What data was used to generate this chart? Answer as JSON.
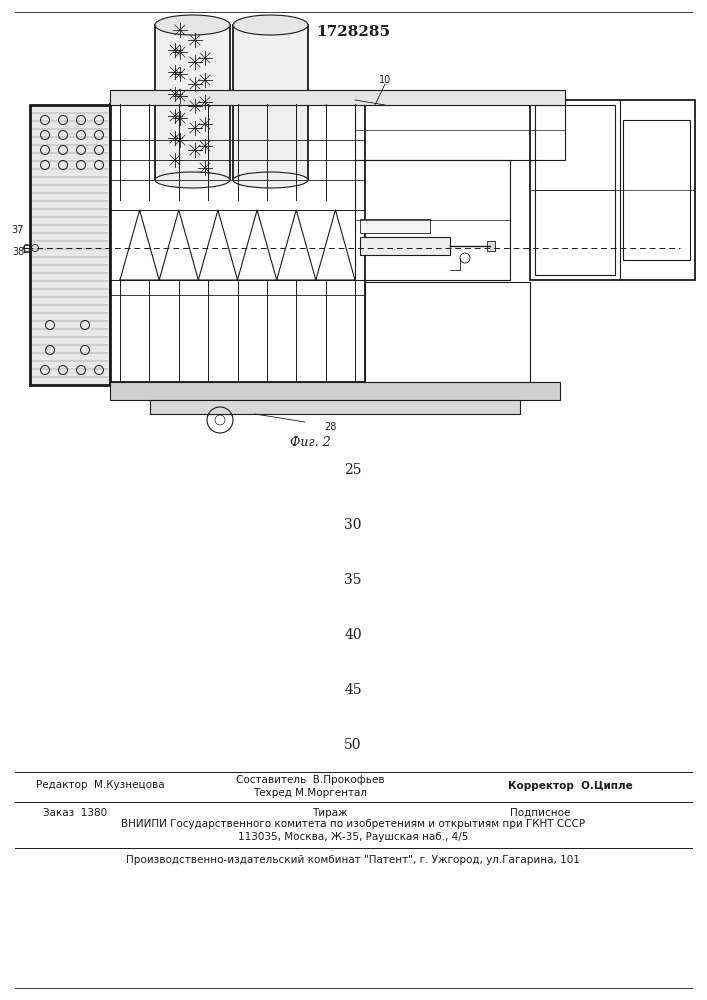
{
  "patent_number": "1728285",
  "fig_caption": "Фиг. 2",
  "page_numbers": [
    "25",
    "30",
    "35",
    "40",
    "45",
    "50"
  ],
  "bottom_texts": {
    "line1_left": "Редактор  М.Кузнецова",
    "line1_center_top": "Составитель  В.Прокофьев",
    "line1_center_bot": "Техред М.Моргентал",
    "line1_right": "Корректор  О.Ципле",
    "line2_col1": "Заказ  1380",
    "line2_col2": "Тираж",
    "line2_col3": "Подписное",
    "line3": "ВНИИПИ Государственного комитета по изобретениям и открытиям при ГКНТ СССР",
    "line4": "113035, Москва, Ж-35, Раушская наб., 4/5",
    "line5": "Производственно-издательский комбинат \"Патент\", г. Ужгород, ул.Гагарина, 101"
  },
  "bg_color": "#ffffff",
  "line_color": "#1a1a1a",
  "label_37": "37",
  "label_38": "38",
  "label_28": "28",
  "label_10": "10"
}
